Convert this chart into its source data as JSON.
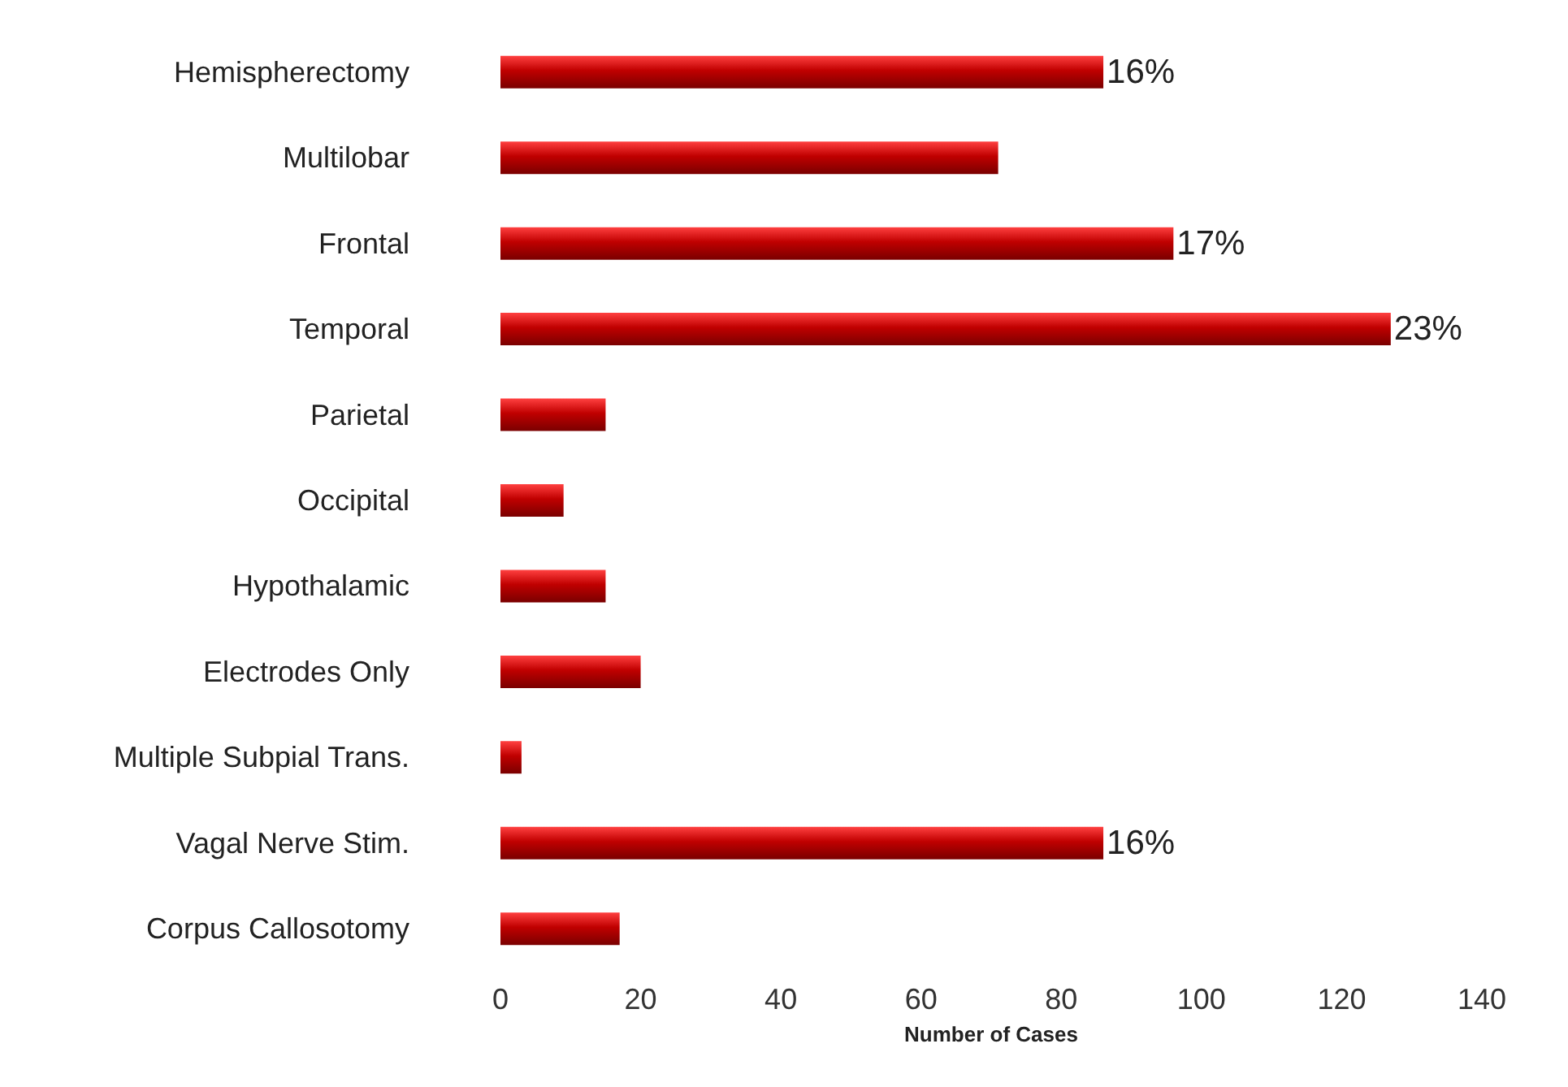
{
  "chart_data": {
    "type": "bar",
    "orientation": "horizontal",
    "xlabel": "Number of Cases",
    "categories": [
      "Hemispherectomy",
      "Multilobar",
      "Frontal",
      "Temporal",
      "Parietal",
      "Occipital",
      "Hypothalamic",
      "Electrodes Only",
      "Multiple Subpial Trans.",
      "Vagal Nerve Stim.",
      "Corpus Callosotomy"
    ],
    "values": [
      86,
      71,
      96,
      127,
      15,
      9,
      15,
      20,
      3,
      86,
      17
    ],
    "annotations": [
      {
        "text": "16%",
        "x": 86,
        "y": "Hemispherectomy"
      },
      {
        "text": "17%",
        "x": 96,
        "y": "Frontal"
      },
      {
        "text": "23%",
        "x": 127,
        "y": "Temporal"
      },
      {
        "text": "16%",
        "x": 86,
        "y": "Vagal Nerve Stim."
      }
    ],
    "color": "#c00000",
    "xlim": [
      0,
      140
    ],
    "xticks": [
      0,
      20,
      40,
      60,
      80,
      100,
      120,
      140
    ],
    "grid": false
  }
}
